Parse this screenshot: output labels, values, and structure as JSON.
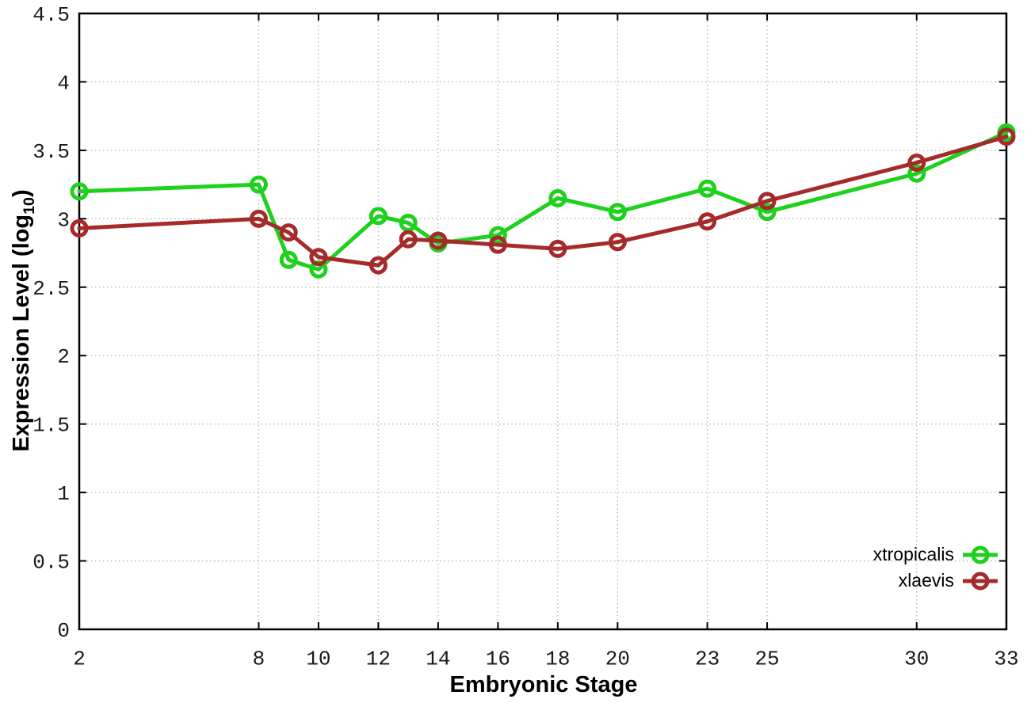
{
  "chart_data": {
    "type": "line",
    "title": "",
    "xlabel": "Embryonic Stage",
    "ylabel": "Expression Level (log10)",
    "ylabel_parts": {
      "prefix": "Expression Level (log",
      "subscript": "10",
      "suffix": ")"
    },
    "x": [
      2,
      8,
      9,
      10,
      12,
      13,
      14,
      16,
      18,
      20,
      23,
      25,
      30,
      33
    ],
    "xlim": [
      2,
      33
    ],
    "ylim": [
      0,
      4.5
    ],
    "xtick_labels": [
      "2",
      "8",
      "10",
      "12",
      "14",
      "16",
      "18",
      "20",
      "23",
      "25",
      "30",
      "33"
    ],
    "xtick_values": [
      2,
      8,
      10,
      12,
      14,
      16,
      18,
      20,
      23,
      25,
      30,
      33
    ],
    "ytick_labels": [
      "0",
      "0.5",
      "1",
      "1.5",
      "2",
      "2.5",
      "3",
      "3.5",
      "4",
      "4.5"
    ],
    "ytick_values": [
      0,
      0.5,
      1,
      1.5,
      2,
      2.5,
      3,
      3.5,
      4,
      4.5
    ],
    "grid": true,
    "legend_position": "bottom-right",
    "series": [
      {
        "name": "xtropicalis",
        "color": "#1dd11d",
        "marker": "open-circle",
        "values": [
          3.2,
          3.25,
          2.7,
          2.63,
          3.02,
          2.97,
          2.82,
          2.88,
          3.15,
          3.05,
          3.22,
          3.05,
          3.33,
          3.63
        ]
      },
      {
        "name": "xlaevis",
        "color": "#a52a2a",
        "marker": "open-circle",
        "values": [
          2.93,
          3.0,
          2.9,
          2.72,
          2.66,
          2.85,
          2.84,
          2.81,
          2.78,
          2.83,
          2.98,
          3.13,
          3.41,
          3.6
        ]
      }
    ],
    "colors": {
      "axis": "#000000",
      "grid": "#b5b5b5",
      "background": "#ffffff",
      "tick_label": "#1a1a1a"
    }
  }
}
